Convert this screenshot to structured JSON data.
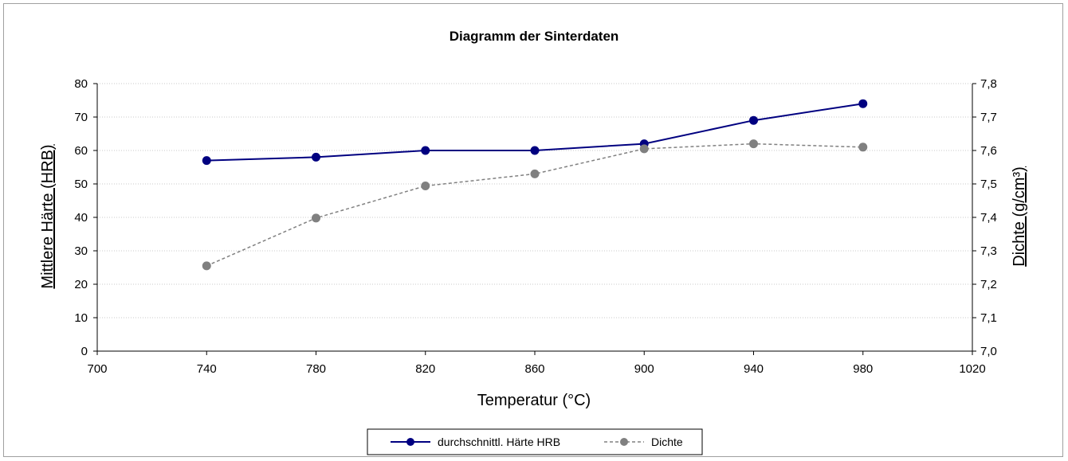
{
  "chart_data": {
    "type": "line",
    "title": "Diagramm der Sinterdaten",
    "xlabel": "Temperatur (°C)",
    "ylabel": "Mittlere Härte (HRB)",
    "ylabel_right": "Dichte (g/cm³)",
    "xlim": [
      700,
      1020
    ],
    "ylim": [
      0,
      80
    ],
    "ylim_right": [
      7.0,
      7.8
    ],
    "x_ticks": [
      "700",
      "740",
      "780",
      "820",
      "860",
      "900",
      "940",
      "980",
      "1020"
    ],
    "y_ticks": [
      "0",
      "10",
      "20",
      "30",
      "40",
      "50",
      "60",
      "70",
      "80"
    ],
    "y_right_ticks": [
      "7,0",
      "7,1",
      "7,2",
      "7,3",
      "7,4",
      "7,5",
      "7,6",
      "7,7",
      "7,8"
    ],
    "grid": true,
    "legend_position": "bottom",
    "series": [
      {
        "name": "durchschnittl. Härte HRB",
        "axis": "left",
        "color": "#000080",
        "line_style": "solid",
        "x": [
          740,
          780,
          820,
          860,
          900,
          940,
          980
        ],
        "values": [
          57,
          58,
          60,
          60,
          62,
          69,
          74
        ]
      },
      {
        "name": "Dichte",
        "axis": "right",
        "color": "#808080",
        "line_style": "dashed",
        "x": [
          740,
          780,
          820,
          860,
          900,
          940,
          980
        ],
        "values": [
          7.255,
          7.398,
          7.494,
          7.53,
          7.605,
          7.62,
          7.61
        ]
      }
    ]
  }
}
